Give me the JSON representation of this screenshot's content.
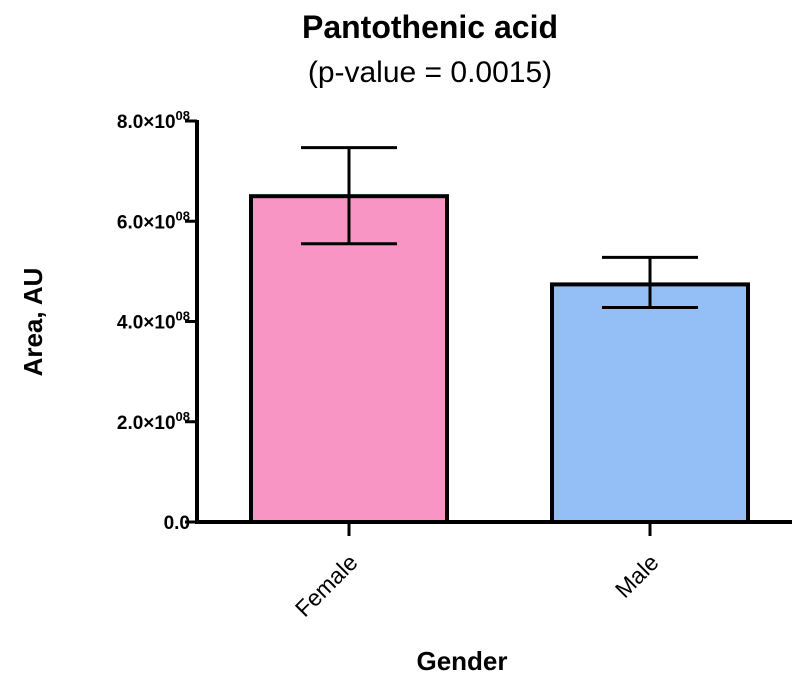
{
  "chart_data": {
    "type": "bar",
    "title": "Pantothenic acid",
    "subtitle": "(p-value = 0.0015)",
    "xlabel": "Gender",
    "ylabel": "Area, AU",
    "categories": [
      "Female",
      "Male"
    ],
    "values": [
      650000000,
      474000000
    ],
    "error_upper": [
      747000000,
      528000000
    ],
    "error_lower": [
      555000000,
      428000000
    ],
    "ylim": [
      0,
      800000000
    ],
    "yticks": [
      {
        "value": 0,
        "mantissa": "0.0",
        "exp": ""
      },
      {
        "value": 200000000,
        "mantissa": "2.0×10",
        "exp": "08"
      },
      {
        "value": 400000000,
        "mantissa": "4.0×10",
        "exp": "08"
      },
      {
        "value": 600000000,
        "mantissa": "6.0×10",
        "exp": "08"
      },
      {
        "value": 800000000,
        "mantissa": "8.0×10",
        "exp": "08"
      }
    ],
    "colors": [
      "#f895c5",
      "#93bff6"
    ],
    "grid": false
  }
}
